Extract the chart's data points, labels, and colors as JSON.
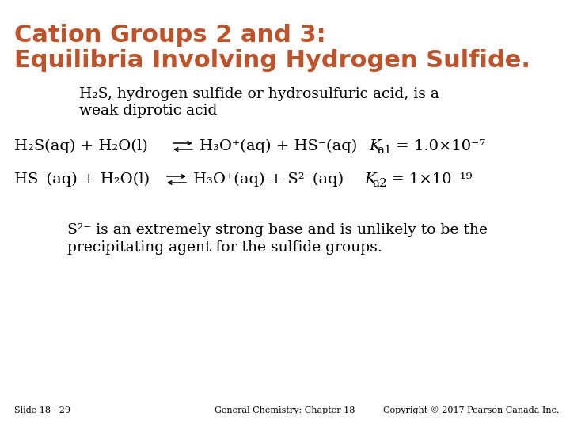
{
  "bg_color": "#ffffff",
  "title_line1": "Cation Groups 2 and 3:",
  "title_line2": "Equilibria Involving Hydrogen Sulfide.",
  "title_color": "#c0522a",
  "title_fontsize": 22,
  "body_color": "#000000",
  "body_fontsize": 13.5,
  "eq_fontsize": 14,
  "footer_fontsize": 8,
  "slide_label": "Slide 18 - 29",
  "footer_center": "General Chemistry: Chapter 18",
  "footer_right": "Copyright © 2017 Pearson Canada Inc."
}
